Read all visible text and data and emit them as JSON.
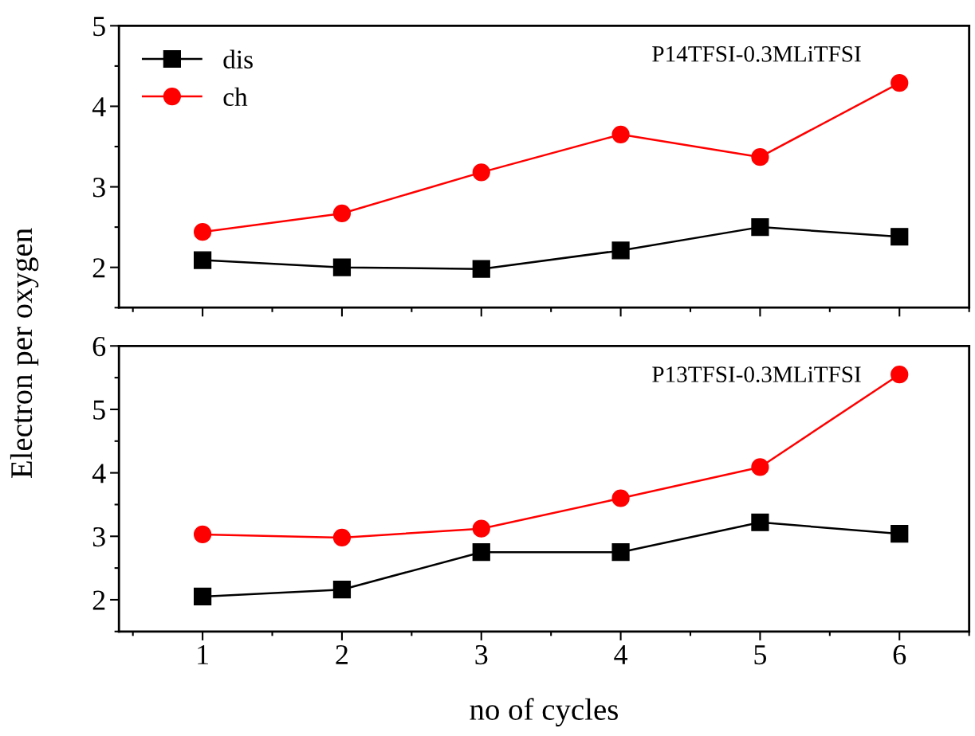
{
  "chart_data": [
    {
      "type": "line",
      "ylabel": "Electron per oxygen",
      "annotations": [
        "P14TFSI-0.3MLiTFSI"
      ],
      "x": [
        1,
        2,
        3,
        4,
        5,
        6
      ],
      "xlim": [
        0.4,
        6.5
      ],
      "xticks": [
        1,
        2,
        3,
        4,
        5,
        6
      ],
      "ylim": [
        1.5,
        5
      ],
      "yticks": [
        2,
        3,
        4,
        5
      ],
      "tick_labels": "y",
      "legend": "top left",
      "grid": false,
      "series": [
        {
          "name": "dis",
          "color": "#000000",
          "marker": "square",
          "values": [
            2.09,
            2.0,
            1.98,
            2.21,
            2.5,
            2.38
          ]
        },
        {
          "name": "ch",
          "color": "#ff0000",
          "marker": "circle",
          "values": [
            2.44,
            2.67,
            3.18,
            3.65,
            3.37,
            4.29
          ]
        }
      ]
    },
    {
      "type": "line",
      "xlabel": "no of cycles",
      "annotations": [
        "P13TFSI-0.3MLiTFSI"
      ],
      "x": [
        1,
        2,
        3,
        4,
        5,
        6
      ],
      "xlim": [
        0.4,
        6.5
      ],
      "xticks": [
        1,
        2,
        3,
        4,
        5,
        6
      ],
      "ylim": [
        1.5,
        6
      ],
      "yticks": [
        2,
        3,
        4,
        5,
        6
      ],
      "grid": false,
      "series": [
        {
          "color": "#000000",
          "marker": "square",
          "values": [
            2.05,
            2.16,
            2.75,
            2.75,
            3.22,
            3.04
          ]
        },
        {
          "color": "#ff0000",
          "marker": "circle",
          "values": [
            3.03,
            2.98,
            3.12,
            3.6,
            4.09,
            5.55
          ]
        }
      ]
    }
  ]
}
